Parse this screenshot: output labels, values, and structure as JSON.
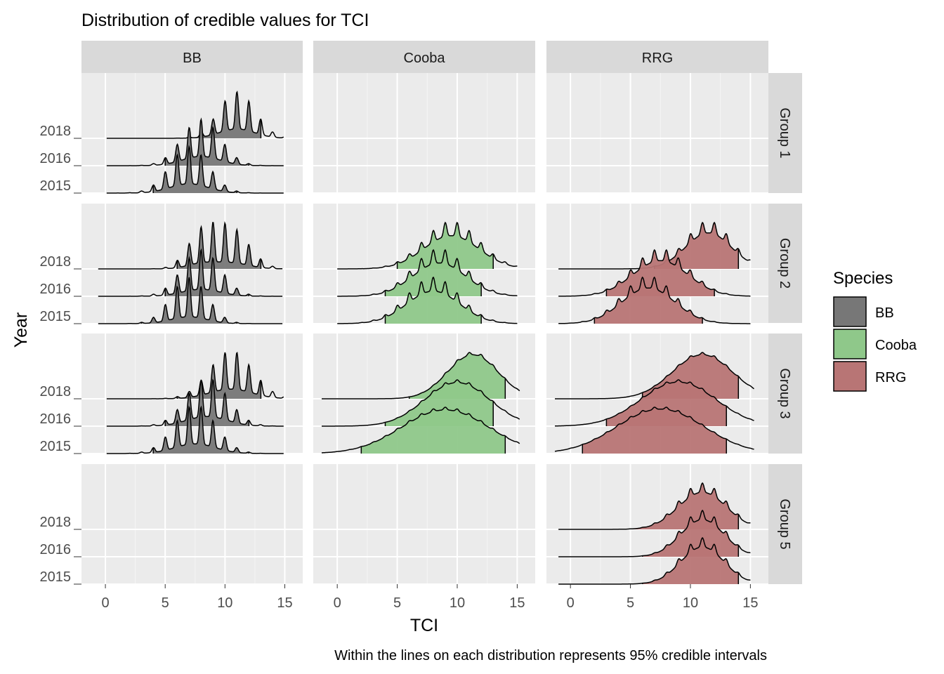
{
  "chart_data": {
    "type": "ridgeline",
    "title": "Distribution of credible values for TCI",
    "xlabel": "TCI",
    "ylabel": "Year",
    "caption": "Within the lines on each distribution represents 95% credible intervals",
    "xlim": [
      -2,
      16.5
    ],
    "xticks": [
      0,
      5,
      10,
      15
    ],
    "xtick_labels": [
      "0",
      "5",
      "10",
      "15"
    ],
    "years": [
      "2015",
      "2016",
      "2018"
    ],
    "columns": [
      "BB",
      "Cooba",
      "RRG"
    ],
    "rows": [
      "Group 1",
      "Group 2",
      "Group 3",
      "Group 5"
    ],
    "legend": {
      "title": "Species",
      "position": "right",
      "items": [
        {
          "label": "BB",
          "color": "#777777"
        },
        {
          "label": "Cooba",
          "color": "#8fc88a"
        },
        {
          "label": "RRG",
          "color": "#b87575"
        }
      ]
    },
    "colors": {
      "BB": "#777777",
      "Cooba": "#8fc88a",
      "RRG": "#b87575"
    },
    "panel_background": "#ebebeb",
    "strip_background": "#d9d9d9",
    "grid": true,
    "series": [
      {
        "row": "Group 1",
        "species": "BB",
        "year": "2015",
        "range": [
          0.1,
          14.9
        ],
        "ci": [
          4,
          11
        ],
        "wiggle": 0.8,
        "components": [
          [
            7,
            1.6,
            1
          ]
        ]
      },
      {
        "row": "Group 1",
        "species": "BB",
        "year": "2016",
        "range": [
          0.1,
          14.9
        ],
        "ci": [
          5,
          12
        ],
        "wiggle": 0.8,
        "components": [
          [
            8,
            1.6,
            1
          ]
        ]
      },
      {
        "row": "Group 1",
        "species": "BB",
        "year": "2018",
        "range": [
          0.1,
          14.9
        ],
        "ci": [
          7,
          13
        ],
        "wiggle": 0.8,
        "components": [
          [
            11,
            1.5,
            1
          ]
        ]
      },
      {
        "row": "Group 2",
        "species": "BB",
        "year": "2015",
        "range": [
          -0.6,
          14.8
        ],
        "ci": [
          3,
          11
        ],
        "wiggle": 0.85,
        "components": [
          [
            7,
            1.5,
            1
          ]
        ]
      },
      {
        "row": "Group 2",
        "species": "BB",
        "year": "2016",
        "range": [
          -0.6,
          14.8
        ],
        "ci": [
          5,
          12
        ],
        "wiggle": 0.85,
        "components": [
          [
            8,
            1.6,
            1
          ]
        ]
      },
      {
        "row": "Group 2",
        "species": "BB",
        "year": "2018",
        "range": [
          -0.6,
          14.8
        ],
        "ci": [
          6,
          13
        ],
        "wiggle": 0.85,
        "components": [
          [
            8,
            1.2,
            0.8
          ],
          [
            10.5,
            1.5,
            1
          ]
        ]
      },
      {
        "row": "Group 2",
        "species": "Cooba",
        "year": "2015",
        "range": [
          0,
          15
        ],
        "ci": [
          4,
          12
        ],
        "wiggle": 0.3,
        "components": [
          [
            8,
            2.2,
            1
          ]
        ]
      },
      {
        "row": "Group 2",
        "species": "Cooba",
        "year": "2016",
        "range": [
          0,
          15
        ],
        "ci": [
          4,
          12
        ],
        "wiggle": 0.3,
        "components": [
          [
            8.5,
            2.2,
            1
          ]
        ]
      },
      {
        "row": "Group 2",
        "species": "Cooba",
        "year": "2018",
        "range": [
          0,
          15
        ],
        "ci": [
          5,
          13
        ],
        "wiggle": 0.3,
        "components": [
          [
            9.5,
            2.3,
            1
          ]
        ]
      },
      {
        "row": "Group 2",
        "species": "RRG",
        "year": "2015",
        "range": [
          -1,
          15
        ],
        "ci": [
          2,
          11
        ],
        "wiggle": 0.25,
        "components": [
          [
            6.5,
            2.2,
            1
          ]
        ]
      },
      {
        "row": "Group 2",
        "species": "RRG",
        "year": "2016",
        "range": [
          -1,
          15
        ],
        "ci": [
          3,
          12
        ],
        "wiggle": 0.25,
        "components": [
          [
            7.5,
            2.3,
            1
          ]
        ]
      },
      {
        "row": "Group 2",
        "species": "RRG",
        "year": "2018",
        "range": [
          -1,
          15
        ],
        "ci": [
          7,
          14
        ],
        "wiggle": 0.25,
        "components": [
          [
            11.5,
            1.9,
            1
          ]
        ]
      },
      {
        "row": "Group 3",
        "species": "BB",
        "year": "2015",
        "range": [
          0.1,
          14.9
        ],
        "ci": [
          4,
          12
        ],
        "wiggle": 0.8,
        "components": [
          [
            7.5,
            1.7,
            1
          ]
        ]
      },
      {
        "row": "Group 3",
        "species": "BB",
        "year": "2016",
        "range": [
          0.1,
          14.9
        ],
        "ci": [
          5,
          12
        ],
        "wiggle": 0.8,
        "components": [
          [
            8.5,
            1.7,
            1
          ]
        ]
      },
      {
        "row": "Group 3",
        "species": "BB",
        "year": "2018",
        "range": [
          0.1,
          14.9
        ],
        "ci": [
          6,
          13
        ],
        "wiggle": 0.8,
        "components": [
          [
            10.5,
            1.8,
            1
          ]
        ]
      },
      {
        "row": "Group 3",
        "species": "Cooba",
        "year": "2015",
        "range": [
          -1.3,
          15.2
        ],
        "ci": [
          2,
          14
        ],
        "wiggle": 0.06,
        "components": [
          [
            9,
            3.6,
            1
          ]
        ]
      },
      {
        "row": "Group 3",
        "species": "Cooba",
        "year": "2016",
        "range": [
          -1.3,
          15.2
        ],
        "ci": [
          4,
          13
        ],
        "wiggle": 0.06,
        "components": [
          [
            10,
            2.7,
            1
          ]
        ]
      },
      {
        "row": "Group 3",
        "species": "Cooba",
        "year": "2018",
        "range": [
          -1.3,
          15.2
        ],
        "ci": [
          6,
          14
        ],
        "wiggle": 0.06,
        "components": [
          [
            11.3,
            2.1,
            1
          ]
        ]
      },
      {
        "row": "Group 3",
        "species": "RRG",
        "year": "2015",
        "range": [
          -1.3,
          15.3
        ],
        "ci": [
          1,
          13
        ],
        "wiggle": 0.05,
        "components": [
          [
            7.5,
            3.6,
            1
          ]
        ]
      },
      {
        "row": "Group 3",
        "species": "RRG",
        "year": "2016",
        "range": [
          -1.3,
          15.3
        ],
        "ci": [
          3,
          13
        ],
        "wiggle": 0.05,
        "components": [
          [
            9,
            3.1,
            1
          ]
        ]
      },
      {
        "row": "Group 3",
        "species": "RRG",
        "year": "2018",
        "range": [
          -1.3,
          15.3
        ],
        "ci": [
          6,
          14
        ],
        "wiggle": 0.05,
        "components": [
          [
            11,
            2.5,
            1
          ]
        ]
      },
      {
        "row": "Group 5",
        "species": "RRG",
        "year": "2015",
        "range": [
          -1,
          15
        ],
        "ci": [
          6,
          14
        ],
        "wiggle": 0.2,
        "components": [
          [
            11,
            1.8,
            1
          ]
        ]
      },
      {
        "row": "Group 5",
        "species": "RRG",
        "year": "2016",
        "range": [
          -1,
          15
        ],
        "ci": [
          6,
          14
        ],
        "wiggle": 0.2,
        "components": [
          [
            11,
            1.8,
            1
          ]
        ]
      },
      {
        "row": "Group 5",
        "species": "RRG",
        "year": "2018",
        "range": [
          -1,
          15
        ],
        "ci": [
          5,
          14
        ],
        "wiggle": 0.2,
        "components": [
          [
            11,
            2,
            1
          ]
        ]
      }
    ]
  }
}
